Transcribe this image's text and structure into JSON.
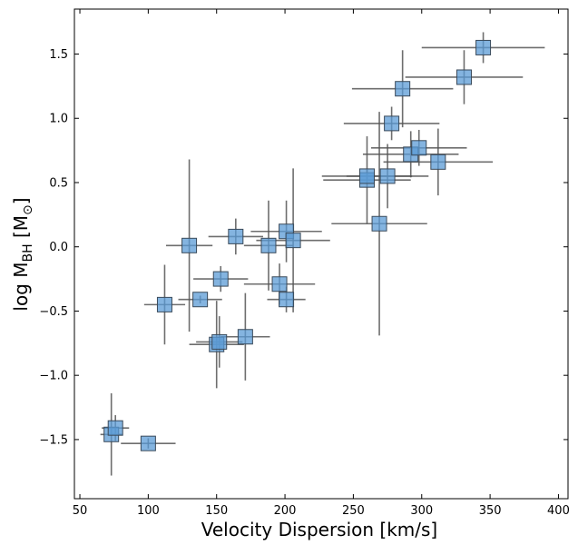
{
  "chart_data": {
    "type": "scatter",
    "title": "",
    "xlabel": "Velocity Dispersion [km/s]",
    "ylabel": {
      "base": "log M",
      "sub": "BH",
      "unit_open": " [M",
      "unit_sub": "⊙",
      "unit_close": "]"
    },
    "xlim": [
      46,
      407
    ],
    "ylim": [
      -1.96,
      1.85
    ],
    "xticks": [
      50,
      100,
      150,
      200,
      250,
      300,
      350,
      400
    ],
    "xtick_labels": [
      "50",
      "100",
      "150",
      "200",
      "250",
      "300",
      "350",
      "400"
    ],
    "yticks": [
      -1.5,
      -1.0,
      -0.5,
      0.0,
      0.5,
      1.0,
      1.5
    ],
    "ytick_labels": [
      "−1.5",
      "−1.0",
      "−0.5",
      "0.0",
      "0.5",
      "1.0",
      "1.5"
    ],
    "grid": false,
    "legend": "none",
    "marker": "square",
    "marker_color": "#5b9bd5",
    "marker_edge": "#3a4a5a",
    "errorbar_color": "#555555",
    "points": [
      {
        "x": 73,
        "y": -1.46,
        "xerr": 8,
        "yerr": 0.32
      },
      {
        "x": 76,
        "y": -1.41,
        "xerr": 10,
        "yerr": 0.1
      },
      {
        "x": 100,
        "y": -1.53,
        "xerr": 20,
        "yerr": 0.04
      },
      {
        "x": 112,
        "y": -0.45,
        "xerr": 15,
        "yerr": 0.31
      },
      {
        "x": 130,
        "y": 0.01,
        "xerr": 17,
        "yerr": 0.67
      },
      {
        "x": 138,
        "y": -0.41,
        "xerr": 16,
        "yerr": 0.03
      },
      {
        "x": 150,
        "y": -0.76,
        "xerr": 20,
        "yerr": 0.34
      },
      {
        "x": 152,
        "y": -0.74,
        "xerr": 17,
        "yerr": 0.2
      },
      {
        "x": 153,
        "y": -0.25,
        "xerr": 20,
        "yerr": 0.1
      },
      {
        "x": 164,
        "y": 0.08,
        "xerr": 20,
        "yerr": 0.14
      },
      {
        "x": 171,
        "y": -0.7,
        "xerr": 18,
        "yerr": 0.34
      },
      {
        "x": 188,
        "y": 0.01,
        "xerr": 18,
        "yerr": 0.35
      },
      {
        "x": 196,
        "y": -0.29,
        "xerr": 26,
        "yerr": 0.16
      },
      {
        "x": 201,
        "y": 0.12,
        "xerr": 26,
        "yerr": 0.24
      },
      {
        "x": 201,
        "y": -0.41,
        "xerr": 14,
        "yerr": 0.1
      },
      {
        "x": 206,
        "y": 0.05,
        "xerr": 27,
        "yerr": 0.56
      },
      {
        "x": 260,
        "y": 0.52,
        "xerr": 32,
        "yerr": 0.34
      },
      {
        "x": 260,
        "y": 0.55,
        "xerr": 33,
        "yerr": 0.05
      },
      {
        "x": 269,
        "y": 0.18,
        "xerr": 35,
        "yerr": 0.87
      },
      {
        "x": 275,
        "y": 0.55,
        "xerr": 30,
        "yerr": 0.25
      },
      {
        "x": 278,
        "y": 0.96,
        "xerr": 35,
        "yerr": 0.13
      },
      {
        "x": 286,
        "y": 1.23,
        "xerr": 37,
        "yerr": 0.3
      },
      {
        "x": 292,
        "y": 0.72,
        "xerr": 35,
        "yerr": 0.18
      },
      {
        "x": 298,
        "y": 0.77,
        "xerr": 35,
        "yerr": 0.14
      },
      {
        "x": 312,
        "y": 0.66,
        "xerr": 40,
        "yerr": 0.26
      },
      {
        "x": 331,
        "y": 1.32,
        "xerr": 43,
        "yerr": 0.21
      },
      {
        "x": 345,
        "y": 1.55,
        "xerr": 45,
        "yerr": 0.12
      }
    ]
  }
}
